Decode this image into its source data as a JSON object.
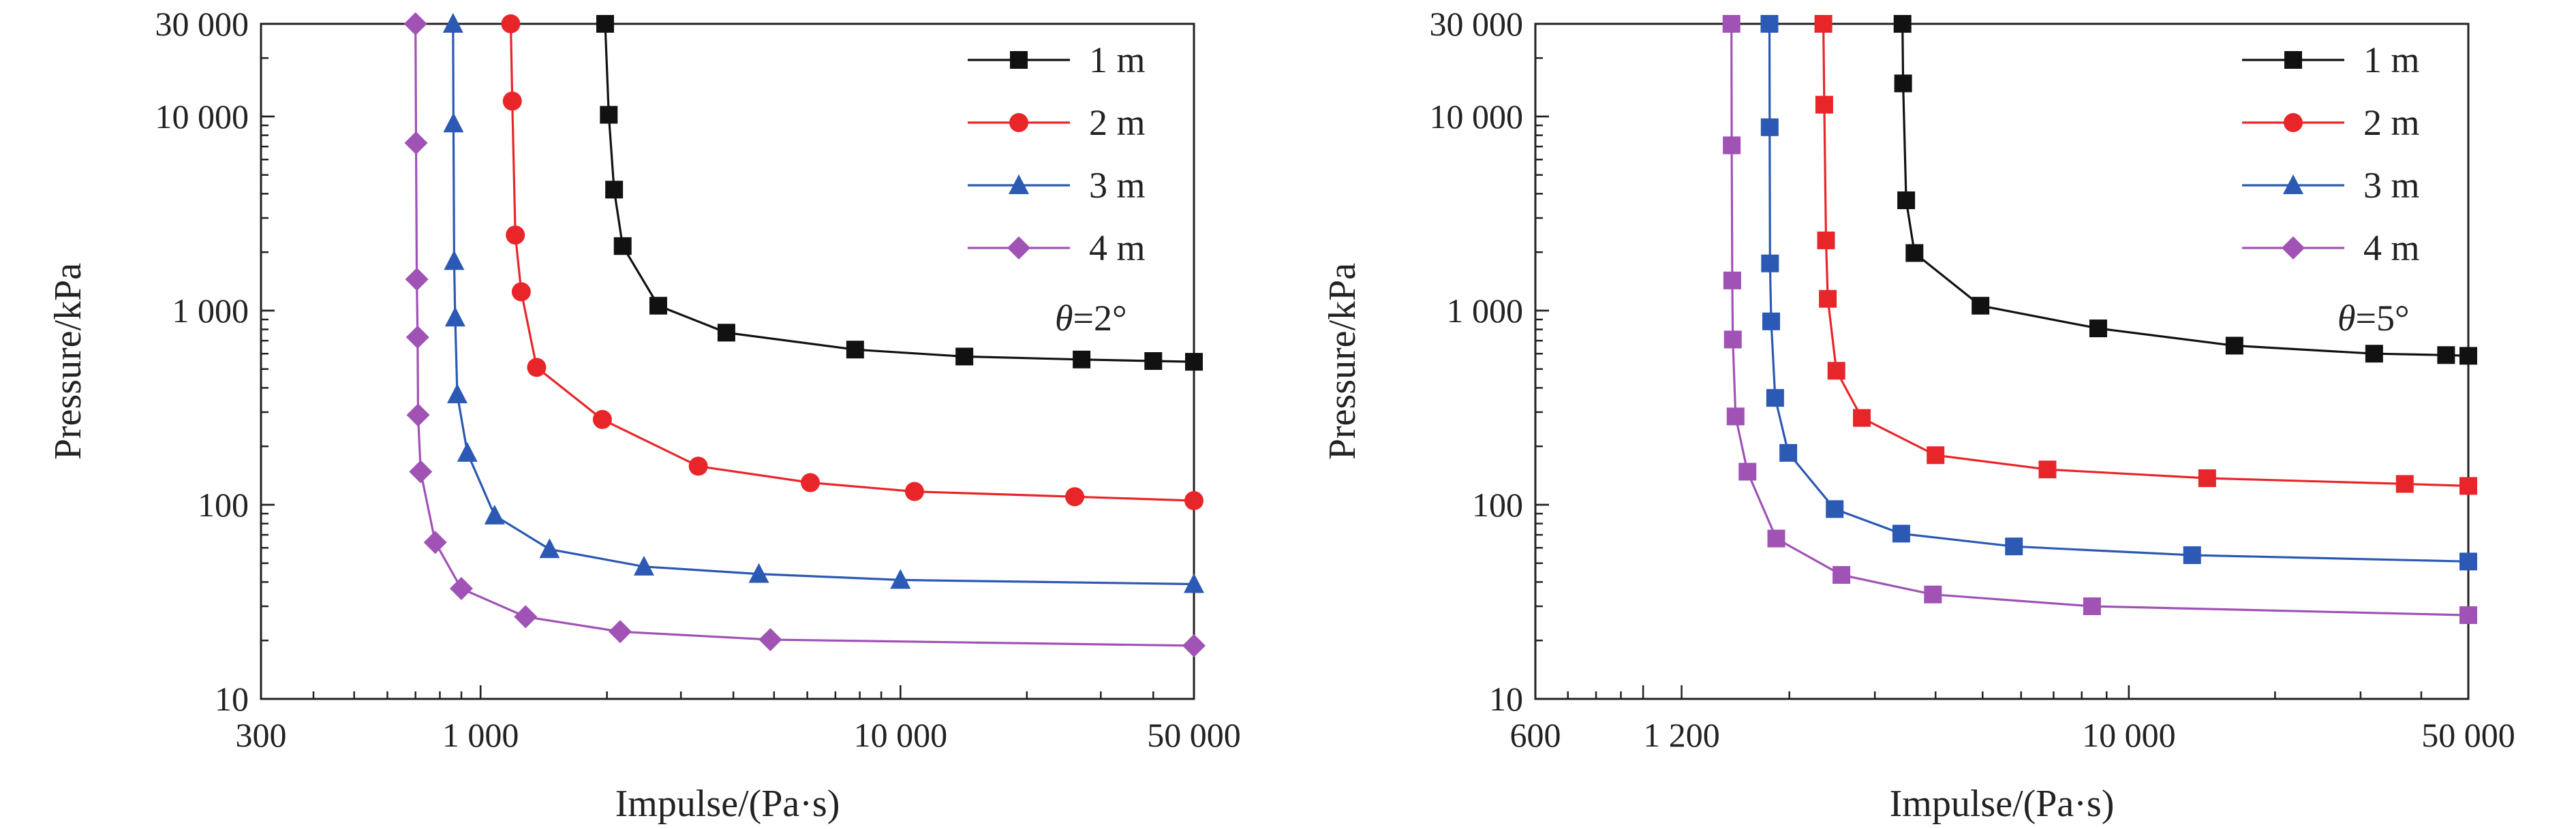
{
  "chart_data": [
    {
      "type": "line",
      "xlabel": "Impulse/(Pa·s)",
      "ylabel": "Pressure/kPa",
      "xscale": "log",
      "yscale": "log",
      "xlim": [
        300,
        50000
      ],
      "ylim": [
        10,
        30000
      ],
      "xticks": [
        {
          "v": 300,
          "label": "300"
        },
        {
          "v": 1000,
          "label": "1 000"
        },
        {
          "v": 10000,
          "label": "10 000"
        },
        {
          "v": 50000,
          "label": "50 000"
        }
      ],
      "yticks": [
        {
          "v": 10,
          "label": "10"
        },
        {
          "v": 100,
          "label": "100"
        },
        {
          "v": 1000,
          "label": "1 000"
        },
        {
          "v": 10000,
          "label": "10 000"
        },
        {
          "v": 30000,
          "label": "30 000"
        }
      ],
      "annotation": {
        "symbol": "θ",
        "text": "=2°"
      },
      "legend_position": "top-right",
      "series": [
        {
          "name": "1 m",
          "color": "#111111",
          "marker": "square",
          "x": [
            1980,
            2020,
            2080,
            2180,
            2650,
            3850,
            7800,
            14200,
            27000,
            40000,
            50000
          ],
          "y": [
            30000,
            10200,
            4200,
            2150,
            1060,
            770,
            630,
            580,
            560,
            550,
            545
          ]
        },
        {
          "name": "2 m",
          "color": "#e8262a",
          "marker": "circle",
          "x": [
            1180,
            1190,
            1210,
            1250,
            1360,
            1950,
            3300,
            6100,
            10800,
            26000,
            50000
          ],
          "y": [
            30000,
            12000,
            2450,
            1250,
            510,
            275,
            158,
            130,
            117,
            110,
            105
          ]
        },
        {
          "name": "3 m",
          "color": "#2b59b3",
          "marker": "triangle",
          "x": [
            860,
            862,
            865,
            870,
            880,
            930,
            1080,
            1460,
            2450,
            4600,
            10000,
            50000
          ],
          "y": [
            30000,
            9200,
            1800,
            920,
            370,
            185,
            88,
            59,
            48,
            44,
            41,
            39
          ]
        },
        {
          "name": "4 m",
          "color": "#a052b5",
          "marker": "diamond",
          "x": [
            700,
            702,
            705,
            708,
            710,
            720,
            780,
            900,
            1280,
            2150,
            4900,
            50000
          ],
          "y": [
            30000,
            7300,
            1450,
            730,
            290,
            148,
            64,
            37,
            26.5,
            22.2,
            20.2,
            18.8
          ]
        }
      ]
    },
    {
      "type": "line",
      "xlabel": "Impulse/(Pa·s)",
      "ylabel": "Pressure/kPa",
      "xscale": "log",
      "yscale": "log",
      "xlim": [
        600,
        50000
      ],
      "ylim": [
        10,
        30000
      ],
      "xticks": [
        {
          "v": 600,
          "label": "600"
        },
        {
          "v": 1200,
          "label": "1 200"
        },
        {
          "v": 10000,
          "label": "10 000"
        },
        {
          "v": 50000,
          "label": "50 000"
        }
      ],
      "yticks": [
        {
          "v": 10,
          "label": "10"
        },
        {
          "v": 100,
          "label": "100"
        },
        {
          "v": 1000,
          "label": "1 000"
        },
        {
          "v": 10000,
          "label": "10 000"
        },
        {
          "v": 30000,
          "label": "30 000"
        }
      ],
      "annotation": {
        "symbol": "θ",
        "text": "=5°"
      },
      "legend_position": "top-right",
      "series": [
        {
          "name": "1 m",
          "color": "#111111",
          "marker": "square",
          "x": [
            3420,
            3430,
            3480,
            3620,
            4950,
            8650,
            16500,
            32000,
            45000,
            50000
          ],
          "y": [
            30000,
            14800,
            3700,
            1980,
            1060,
            810,
            660,
            600,
            590,
            585
          ]
        },
        {
          "name": "2 m",
          "color": "#e8262a",
          "marker": "square",
          "x": [
            2350,
            2360,
            2380,
            2400,
            2500,
            2820,
            4000,
            6800,
            14500,
            37000,
            50000
          ],
          "y": [
            30000,
            11500,
            2300,
            1150,
            490,
            280,
            180,
            152,
            137,
            128,
            125
          ]
        },
        {
          "name": "3 m",
          "color": "#2b59b3",
          "marker": "square",
          "x": [
            1820,
            1822,
            1825,
            1835,
            1870,
            1990,
            2480,
            3400,
            5800,
            13500,
            50000
          ],
          "y": [
            30000,
            8800,
            1750,
            880,
            355,
            185,
            95,
            71,
            61,
            55,
            51
          ]
        },
        {
          "name": "4 m",
          "color": "#a052b5",
          "marker": "square",
          "x": [
            1520,
            1522,
            1526,
            1530,
            1550,
            1640,
            1880,
            2560,
            3950,
            8400,
            50000
          ],
          "y": [
            30000,
            7100,
            1430,
            710,
            285,
            148,
            67,
            43.5,
            34.5,
            30,
            27
          ]
        }
      ]
    }
  ],
  "legend": {
    "entries": [
      {
        "label": "1 m",
        "color": "#111111",
        "marker": "square"
      },
      {
        "label": "2 m",
        "color": "#e8262a",
        "marker": "circle"
      },
      {
        "label": "3 m",
        "color": "#2b59b3",
        "marker": "triangle"
      },
      {
        "label": "4 m",
        "color": "#a052b5",
        "marker": "diamond"
      }
    ]
  }
}
